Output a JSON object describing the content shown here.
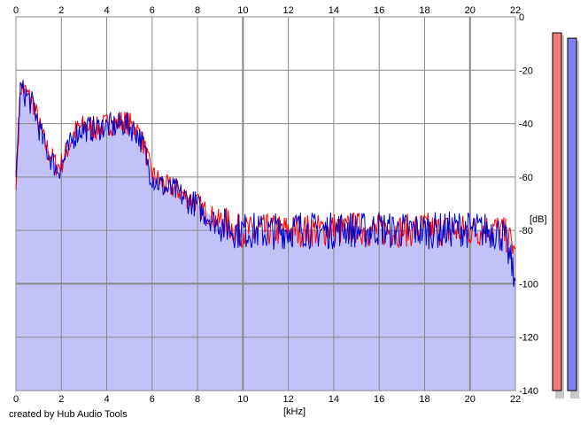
{
  "chart_data": {
    "type": "area",
    "xlabel": "[kHz]",
    "ylabel": "[dB]",
    "xlim": [
      0,
      22
    ],
    "ylim": [
      -140,
      0
    ],
    "x_ticks": [
      0,
      2,
      4,
      6,
      8,
      10,
      12,
      14,
      16,
      18,
      20,
      22
    ],
    "y_ticks": [
      0,
      -20,
      -40,
      -60,
      -80,
      -100,
      -120,
      -140
    ],
    "grid": true,
    "series": [
      {
        "color": "#ff0000",
        "x": [
          0,
          0.2,
          0.5,
          0.8,
          1.0,
          1.3,
          1.6,
          1.8,
          2.0,
          2.3,
          2.6,
          2.9,
          3.2,
          3.5,
          3.8,
          4.1,
          4.4,
          4.7,
          5.0,
          5.3,
          5.5,
          5.7,
          5.9,
          6.1,
          6.4,
          6.7,
          7.0,
          7.3,
          7.6,
          7.9,
          8.2,
          8.5,
          8.8,
          9.1,
          9.4,
          9.7,
          10.0,
          10.5,
          11.0,
          11.5,
          12.0,
          12.5,
          13.0,
          13.5,
          14.0,
          14.5,
          15.0,
          15.5,
          16.0,
          16.5,
          17.0,
          17.5,
          18.0,
          18.5,
          19.0,
          19.5,
          20.0,
          20.5,
          21.0,
          21.5,
          22.0
        ],
        "values": [
          -65,
          -26,
          -29,
          -33,
          -40,
          -48,
          -53,
          -56,
          -55,
          -49,
          -43,
          -41,
          -41,
          -42,
          -41,
          -40,
          -40,
          -39,
          -40,
          -42,
          -45,
          -50,
          -57,
          -60,
          -62,
          -64,
          -64,
          -66,
          -68,
          -69,
          -72,
          -74,
          -76,
          -77,
          -78,
          -80,
          -80,
          -81,
          -80,
          -80,
          -80,
          -80,
          -80,
          -80,
          -79,
          -80,
          -79,
          -80,
          -80,
          -80,
          -80,
          -80,
          -79,
          -80,
          -80,
          -80,
          -80,
          -80,
          -79,
          -81,
          -87
        ]
      },
      {
        "color": "#0000cc",
        "x": [
          0,
          0.2,
          0.5,
          0.8,
          1.0,
          1.3,
          1.6,
          1.8,
          2.0,
          2.3,
          2.6,
          2.9,
          3.2,
          3.5,
          3.8,
          4.1,
          4.4,
          4.7,
          5.0,
          5.3,
          5.5,
          5.7,
          5.9,
          6.1,
          6.4,
          6.7,
          7.0,
          7.3,
          7.6,
          7.9,
          8.2,
          8.5,
          8.8,
          9.1,
          9.4,
          9.7,
          10.0,
          10.5,
          11.0,
          11.5,
          12.0,
          12.5,
          13.0,
          13.5,
          14.0,
          14.5,
          15.0,
          15.5,
          16.0,
          16.5,
          17.0,
          17.5,
          18.0,
          18.5,
          19.0,
          19.5,
          20.0,
          20.5,
          21.0,
          21.5,
          22.0
        ],
        "values": [
          -60,
          -27,
          -30,
          -34,
          -41,
          -49,
          -54,
          -57,
          -56,
          -50,
          -44,
          -42,
          -42,
          -42,
          -41,
          -41,
          -41,
          -40,
          -41,
          -43,
          -46,
          -51,
          -58,
          -61,
          -63,
          -65,
          -65,
          -67,
          -69,
          -70,
          -73,
          -75,
          -77,
          -78,
          -79,
          -80,
          -80,
          -80,
          -81,
          -80,
          -80,
          -79,
          -80,
          -80,
          -80,
          -79,
          -80,
          -80,
          -79,
          -80,
          -80,
          -80,
          -80,
          -80,
          -80,
          -79,
          -80,
          -80,
          -80,
          -82,
          -99
        ]
      }
    ],
    "meters": [
      {
        "color": "#f07c7c",
        "value_db": -6
      },
      {
        "color": "#8080f0",
        "value_db": -8
      }
    ]
  },
  "footer": {
    "credit": "created by Hub Audio Tools"
  }
}
